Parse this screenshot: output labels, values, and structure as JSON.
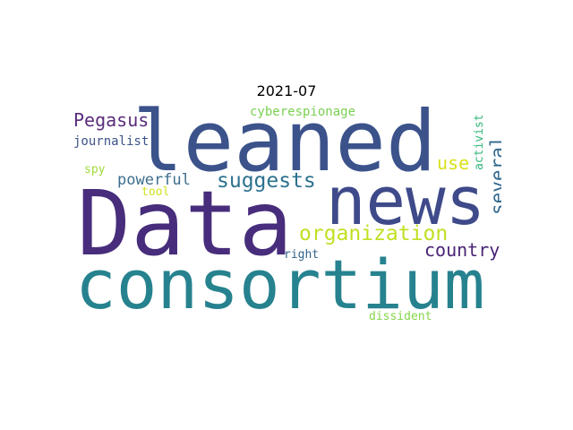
{
  "title": "2021-07",
  "words": [
    {
      "text": "leaned",
      "color": "#3b528b"
    },
    {
      "text": "Data",
      "color": "#472d7b"
    },
    {
      "text": "news",
      "color": "#3e4a89"
    },
    {
      "text": "consortium",
      "color": "#26828e"
    },
    {
      "text": "organization",
      "color": "#c2df23"
    },
    {
      "text": "country",
      "color": "#482475"
    },
    {
      "text": "suggests",
      "color": "#2c728e"
    },
    {
      "text": "several",
      "color": "#31688e"
    },
    {
      "text": "Pegasus",
      "color": "#5a2c7c"
    },
    {
      "text": "powerful",
      "color": "#3e6e8e"
    },
    {
      "text": "use",
      "color": "#d8e219"
    },
    {
      "text": "cyberespionage",
      "color": "#7ad151"
    },
    {
      "text": "journalist",
      "color": "#3d5389"
    },
    {
      "text": "activist",
      "color": "#35b779"
    },
    {
      "text": "spy",
      "color": "#a0da39"
    },
    {
      "text": "tool",
      "color": "#d0e11c"
    },
    {
      "text": "right",
      "color": "#33638d"
    },
    {
      "text": "dissident",
      "color": "#86d549"
    }
  ]
}
